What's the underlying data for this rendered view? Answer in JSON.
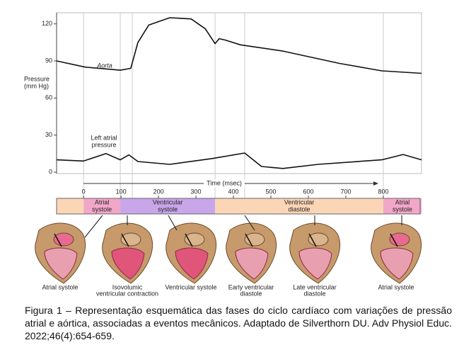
{
  "chart_data": {
    "type": "line",
    "y_label": [
      "Pressure",
      "(mm Hg)"
    ],
    "x_label": "Time (msec)",
    "xlim": [
      -72,
      902
    ],
    "xticks": [
      0,
      100,
      200,
      300,
      400,
      500,
      600,
      700,
      800
    ],
    "ylim": [
      0,
      129
    ],
    "yticks": [
      0,
      30,
      60,
      90,
      120
    ],
    "phase_boundaries": [
      0,
      98,
      130,
      351,
      430,
      800
    ],
    "series": [
      {
        "name": "Aorta",
        "color": "#111",
        "x": [
          -72,
          4,
          98,
          126,
          145,
          174,
          230,
          287,
          325,
          351,
          362,
          377,
          419,
          532,
          683,
          796,
          902
        ],
        "values": [
          90,
          85,
          82.5,
          84,
          105,
          119,
          125,
          124,
          116,
          104,
          108,
          107,
          103,
          98,
          88,
          82,
          80
        ]
      },
      {
        "name": [
          "Left atrial",
          "pressure"
        ],
        "color": "#111",
        "x": [
          -72,
          0,
          60,
          98,
          121,
          145,
          230,
          343,
          430,
          475,
          532,
          626,
          796,
          853,
          902
        ],
        "values": [
          10,
          9,
          15,
          10,
          14,
          8.6,
          6.3,
          11,
          15.5,
          4.6,
          3,
          6.3,
          10,
          14.3,
          10
        ]
      }
    ],
    "phases": [
      {
        "label": [
          "Atrial",
          "systole"
        ],
        "start": 0,
        "end": 98,
        "color": "#f2a7c9"
      },
      {
        "label": [
          "Ventricular",
          "systole"
        ],
        "start": 98,
        "end": 351,
        "color": "#c9a6ea"
      },
      {
        "label": [
          "Ventricular",
          "diastole"
        ],
        "start": 351,
        "end": 800,
        "color": "#fbd6b6"
      },
      {
        "label": [
          "Atrial",
          "systole"
        ],
        "start": 800,
        "end": 902,
        "color": "#f2a7c9"
      }
    ]
  },
  "hearts": [
    {
      "label": [
        "Atrial systole"
      ]
    },
    {
      "label": [
        "Isovolumic",
        "ventricular contraction"
      ]
    },
    {
      "label": [
        "Ventricular systole"
      ]
    },
    {
      "label": [
        "Early ventricular",
        "diastole"
      ]
    },
    {
      "label": [
        "Late ventricular",
        "diastole"
      ]
    },
    {
      "label": [
        "Atrial systole"
      ]
    }
  ],
  "caption": "Figura 1 – Representação esquemática das fases do ciclo cardíaco com variações de pressão atrial e aórtica, associadas a eventos mecânicos. Adaptado de Silverthorn DU. Adv Physiol Educ. 2022;46(4):654-659."
}
